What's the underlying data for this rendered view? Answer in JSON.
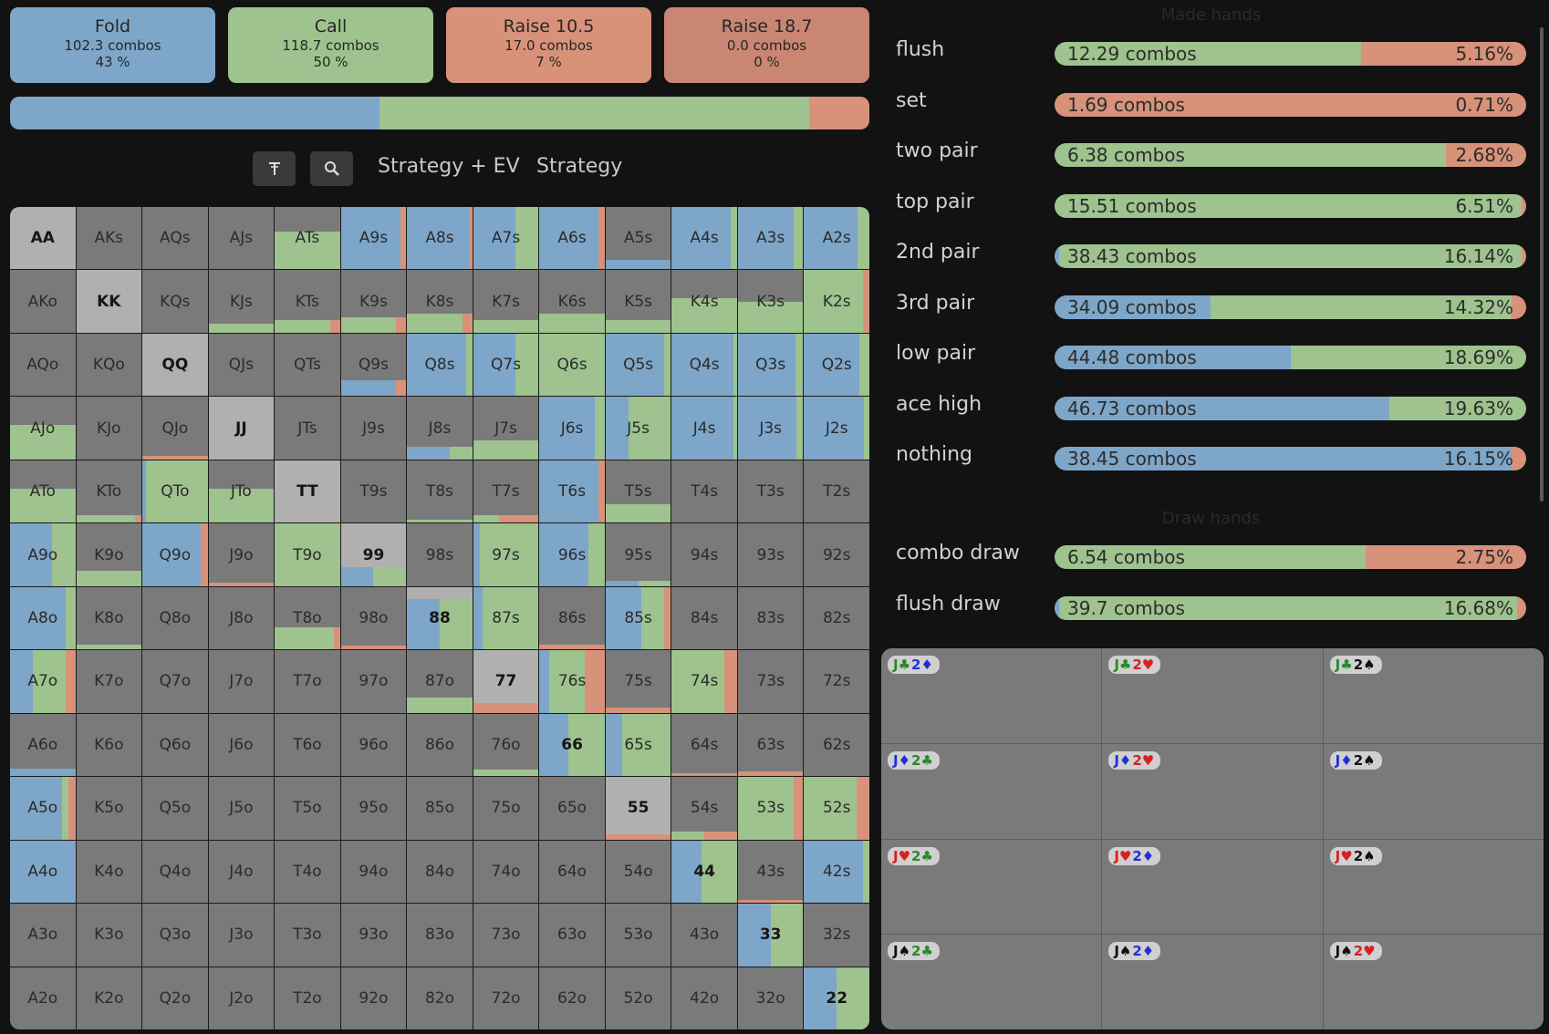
{
  "actions": [
    {
      "title": "Fold",
      "combos": "102.3 combos",
      "pct": "43 %",
      "color": "#7ea6c8"
    },
    {
      "title": "Call",
      "combos": "118.7 combos",
      "pct": "50 %",
      "color": "#9ec38e"
    },
    {
      "title": "Raise 10.5",
      "combos": "17.0 combos",
      "pct": "7 %",
      "color": "#d8927a"
    },
    {
      "title": "Raise 18.7",
      "combos": "0.0 combos",
      "pct": "0 %",
      "color": "#c98672"
    }
  ],
  "strategy_bar": [
    {
      "action": "Fold",
      "fraction": 0.43,
      "color": "#7ea6c8"
    },
    {
      "action": "Call",
      "fraction": 0.5,
      "color": "#9ec38e"
    },
    {
      "action": "Raise 10.5",
      "fraction": 0.07,
      "color": "#d8927a"
    }
  ],
  "toolbar": {
    "filter_icon": "filter-icon",
    "zoom_icon": "magnifier-icon",
    "tab_strategy_ev": "Strategy + EV",
    "tab_strategy": "Strategy"
  },
  "colors": {
    "fold": "#7ea6c8",
    "call": "#9ec38e",
    "raise": "#d8927a",
    "cell": "#7a7a7a",
    "pair": "#b0b0b0"
  },
  "grid": [
    [
      "AA",
      "AKs",
      "AQs",
      "AJs",
      "ATs",
      "A9s",
      "A8s",
      "A7s",
      "A6s",
      "A5s",
      "A4s",
      "A3s",
      "A2s"
    ],
    [
      "AKo",
      "KK",
      "KQs",
      "KJs",
      "KTs",
      "K9s",
      "K8s",
      "K7s",
      "K6s",
      "K5s",
      "K4s",
      "K3s",
      "K2s"
    ],
    [
      "AQo",
      "KQo",
      "QQ",
      "QJs",
      "QTs",
      "Q9s",
      "Q8s",
      "Q7s",
      "Q6s",
      "Q5s",
      "Q4s",
      "Q3s",
      "Q2s"
    ],
    [
      "AJo",
      "KJo",
      "QJo",
      "JJ",
      "JTs",
      "J9s",
      "J8s",
      "J7s",
      "J6s",
      "J5s",
      "J4s",
      "J3s",
      "J2s"
    ],
    [
      "ATo",
      "KTo",
      "QTo",
      "JTo",
      "TT",
      "T9s",
      "T8s",
      "T7s",
      "T6s",
      "T5s",
      "T4s",
      "T3s",
      "T2s"
    ],
    [
      "A9o",
      "K9o",
      "Q9o",
      "J9o",
      "T9o",
      "99",
      "98s",
      "97s",
      "96s",
      "95s",
      "94s",
      "93s",
      "92s"
    ],
    [
      "A8o",
      "K8o",
      "Q8o",
      "J8o",
      "T8o",
      "98o",
      "88",
      "87s",
      "86s",
      "85s",
      "84s",
      "83s",
      "82s"
    ],
    [
      "A7o",
      "K7o",
      "Q7o",
      "J7o",
      "T7o",
      "97o",
      "87o",
      "77",
      "76s",
      "75s",
      "74s",
      "73s",
      "72s"
    ],
    [
      "A6o",
      "K6o",
      "Q6o",
      "J6o",
      "T6o",
      "96o",
      "86o",
      "76o",
      "66",
      "65s",
      "64s",
      "63s",
      "62s"
    ],
    [
      "A5o",
      "K5o",
      "Q5o",
      "J5o",
      "T5o",
      "95o",
      "85o",
      "75o",
      "65o",
      "55",
      "54s",
      "53s",
      "52s"
    ],
    [
      "A4o",
      "K4o",
      "Q4o",
      "J4o",
      "T4o",
      "94o",
      "84o",
      "74o",
      "64o",
      "54o",
      "44",
      "43s",
      "42s"
    ],
    [
      "A3o",
      "K3o",
      "Q3o",
      "J3o",
      "T3o",
      "93o",
      "83o",
      "73o",
      "63o",
      "53o",
      "43o",
      "33",
      "32s"
    ],
    [
      "A2o",
      "K2o",
      "Q2o",
      "J2o",
      "T2o",
      "92o",
      "82o",
      "72o",
      "62o",
      "52o",
      "42o",
      "32o",
      "22"
    ]
  ],
  "cell_strategy": {
    "ATs": {
      "weight": 0.6,
      "fold": 0,
      "call": 1,
      "raise": 0
    },
    "A9s": {
      "weight": 1,
      "fold": 0.92,
      "call": 0,
      "raise": 0.08
    },
    "A8s": {
      "weight": 1,
      "fold": 0.95,
      "call": 0,
      "raise": 0.05
    },
    "A7s": {
      "weight": 1,
      "fold": 0.65,
      "call": 0.35,
      "raise": 0
    },
    "A6s": {
      "weight": 1,
      "fold": 0.9,
      "call": 0,
      "raise": 0.1
    },
    "A5s": {
      "weight": 0.15,
      "fold": 1,
      "call": 0,
      "raise": 0
    },
    "A4s": {
      "weight": 1,
      "fold": 0.9,
      "call": 0.1,
      "raise": 0
    },
    "A3s": {
      "weight": 1,
      "fold": 0.85,
      "call": 0.15,
      "raise": 0
    },
    "A2s": {
      "weight": 1,
      "fold": 0.82,
      "call": 0.18,
      "raise": 0
    },
    "KJs": {
      "weight": 0.15,
      "fold": 0,
      "call": 1,
      "raise": 0
    },
    "KTs": {
      "weight": 0.2,
      "fold": 0,
      "call": 0.85,
      "raise": 0.15
    },
    "K9s": {
      "weight": 0.25,
      "fold": 0,
      "call": 0.85,
      "raise": 0.15
    },
    "K8s": {
      "weight": 0.3,
      "fold": 0,
      "call": 0.85,
      "raise": 0.15
    },
    "K7s": {
      "weight": 0.2,
      "fold": 0,
      "call": 1,
      "raise": 0
    },
    "K6s": {
      "weight": 0.3,
      "fold": 0,
      "call": 1,
      "raise": 0
    },
    "K5s": {
      "weight": 0.2,
      "fold": 0,
      "call": 1,
      "raise": 0
    },
    "K4s": {
      "weight": 0.55,
      "fold": 0,
      "call": 1,
      "raise": 0
    },
    "K3s": {
      "weight": 0.5,
      "fold": 0,
      "call": 1,
      "raise": 0
    },
    "K2s": {
      "weight": 1,
      "fold": 0,
      "call": 0.9,
      "raise": 0.1
    },
    "Q9s": {
      "weight": 0.25,
      "fold": 0.85,
      "call": 0,
      "raise": 0.15
    },
    "Q8s": {
      "weight": 1,
      "fold": 0.9,
      "call": 0.1,
      "raise": 0
    },
    "Q7s": {
      "weight": 1,
      "fold": 0.65,
      "call": 0.35,
      "raise": 0
    },
    "Q6s": {
      "weight": 1,
      "fold": 0,
      "call": 1,
      "raise": 0
    },
    "Q5s": {
      "weight": 1,
      "fold": 0.9,
      "call": 0.1,
      "raise": 0
    },
    "Q4s": {
      "weight": 1,
      "fold": 0.95,
      "call": 0.05,
      "raise": 0
    },
    "Q3s": {
      "weight": 1,
      "fold": 0.88,
      "call": 0.12,
      "raise": 0
    },
    "Q2s": {
      "weight": 1,
      "fold": 0.85,
      "call": 0.15,
      "raise": 0
    },
    "AJo": {
      "weight": 0.55,
      "fold": 0,
      "call": 1,
      "raise": 0
    },
    "QJo": {
      "weight": 0.05,
      "fold": 0,
      "call": 0,
      "raise": 1
    },
    "J8s": {
      "weight": 0.2,
      "fold": 0.65,
      "call": 0.35,
      "raise": 0
    },
    "J7s": {
      "weight": 0.3,
      "fold": 0,
      "call": 1,
      "raise": 0
    },
    "J6s": {
      "weight": 1,
      "fold": 0.85,
      "call": 0.15,
      "raise": 0
    },
    "J5s": {
      "weight": 1,
      "fold": 0.35,
      "call": 0.65,
      "raise": 0
    },
    "J4s": {
      "weight": 1,
      "fold": 0.95,
      "call": 0.05,
      "raise": 0
    },
    "J3s": {
      "weight": 1,
      "fold": 0.9,
      "call": 0.1,
      "raise": 0
    },
    "J2s": {
      "weight": 1,
      "fold": 0.92,
      "call": 0.08,
      "raise": 0
    },
    "ATo": {
      "weight": 0.55,
      "fold": 0,
      "call": 1,
      "raise": 0
    },
    "KTo": {
      "weight": 0.12,
      "fold": 0,
      "call": 0.9,
      "raise": 0.1
    },
    "QTo": {
      "weight": 1,
      "fold": 0.05,
      "call": 0.95,
      "raise": 0
    },
    "JTo": {
      "weight": 0.55,
      "fold": 0,
      "call": 1,
      "raise": 0
    },
    "T8s": {
      "weight": 0.05,
      "fold": 0,
      "call": 1,
      "raise": 0
    },
    "T7s": {
      "weight": 0.12,
      "fold": 0,
      "call": 0.4,
      "raise": 0.6
    },
    "T6s": {
      "weight": 1,
      "fold": 0.9,
      "call": 0,
      "raise": 0.1
    },
    "T5s": {
      "weight": 0.3,
      "fold": 0,
      "call": 1,
      "raise": 0
    },
    "A9o": {
      "weight": 1,
      "fold": 0.65,
      "call": 0.35,
      "raise": 0
    },
    "K9o": {
      "weight": 0.25,
      "fold": 0,
      "call": 1,
      "raise": 0
    },
    "Q9o": {
      "weight": 1,
      "fold": 0.9,
      "call": 0,
      "raise": 0.1
    },
    "J9o": {
      "weight": 0.05,
      "fold": 0,
      "call": 0,
      "raise": 1
    },
    "T9o": {
      "weight": 1,
      "fold": 0,
      "call": 1,
      "raise": 0
    },
    "99": {
      "weight": 0.3,
      "fold": 0.5,
      "call": 0.5,
      "raise": 0
    },
    "97s": {
      "weight": 1,
      "fold": 0.1,
      "call": 0.9,
      "raise": 0
    },
    "96s": {
      "weight": 1,
      "fold": 0.75,
      "call": 0.25,
      "raise": 0
    },
    "95s": {
      "weight": 0.08,
      "fold": 0.5,
      "call": 0.5,
      "raise": 0
    },
    "A8o": {
      "weight": 1,
      "fold": 0.85,
      "call": 0.15,
      "raise": 0
    },
    "K8o": {
      "weight": 0.08,
      "fold": 0,
      "call": 1,
      "raise": 0
    },
    "T8o": {
      "weight": 0.35,
      "fold": 0,
      "call": 0.9,
      "raise": 0.1
    },
    "98o": {
      "weight": 0.06,
      "fold": 0,
      "call": 0,
      "raise": 1
    },
    "88": {
      "weight": 0.8,
      "fold": 0.5,
      "call": 0.5,
      "raise": 0
    },
    "87s": {
      "weight": 1,
      "fold": 0.15,
      "call": 0.85,
      "raise": 0
    },
    "86s": {
      "weight": 0.08,
      "fold": 0,
      "call": 0,
      "raise": 1
    },
    "85s": {
      "weight": 1,
      "fold": 0.55,
      "call": 0.35,
      "raise": 0.1
    },
    "A7o": {
      "weight": 1,
      "fold": 0.35,
      "call": 0.5,
      "raise": 0.15
    },
    "87o": {
      "weight": 0.25,
      "fold": 0,
      "call": 1,
      "raise": 0
    },
    "77": {
      "weight": 0.15,
      "fold": 0,
      "call": 0,
      "raise": 1
    },
    "76s": {
      "weight": 1,
      "fold": 0.15,
      "call": 0.55,
      "raise": 0.3
    },
    "75s": {
      "weight": 0.08,
      "fold": 0,
      "call": 0,
      "raise": 1
    },
    "74s": {
      "weight": 1,
      "fold": 0,
      "call": 0.8,
      "raise": 0.2
    },
    "A6o": {
      "weight": 0.12,
      "fold": 1,
      "call": 0,
      "raise": 0
    },
    "76o": {
      "weight": 0.1,
      "fold": 0,
      "call": 1,
      "raise": 0
    },
    "66": {
      "weight": 1,
      "fold": 0.45,
      "call": 0.55,
      "raise": 0
    },
    "65s": {
      "weight": 1,
      "fold": 0.25,
      "call": 0.75,
      "raise": 0
    },
    "64s": {
      "weight": 0.05,
      "fold": 0,
      "call": 0,
      "raise": 1
    },
    "63s": {
      "weight": 0.08,
      "fold": 0,
      "call": 0,
      "raise": 1
    },
    "A5o": {
      "weight": 1,
      "fold": 0.8,
      "call": 0.1,
      "raise": 0.1
    },
    "55": {
      "weight": 0.08,
      "fold": 0,
      "call": 0,
      "raise": 1
    },
    "54s": {
      "weight": 0.12,
      "fold": 0,
      "call": 0.5,
      "raise": 0.5
    },
    "53s": {
      "weight": 1,
      "fold": 0,
      "call": 0.85,
      "raise": 0.15
    },
    "52s": {
      "weight": 1,
      "fold": 0,
      "call": 0.8,
      "raise": 0.2
    },
    "A4o": {
      "weight": 1,
      "fold": 1,
      "call": 0,
      "raise": 0
    },
    "44": {
      "weight": 1,
      "fold": 0.45,
      "call": 0.55,
      "raise": 0
    },
    "43s": {
      "weight": 0.05,
      "fold": 0,
      "call": 0,
      "raise": 1
    },
    "42s": {
      "weight": 1,
      "fold": 0.9,
      "call": 0.1,
      "raise": 0
    },
    "33": {
      "weight": 1,
      "fold": 0.5,
      "call": 0.5,
      "raise": 0
    },
    "22": {
      "weight": 1,
      "fold": 0.5,
      "call": 0.5,
      "raise": 0
    }
  },
  "hand_classes": {
    "title": "Made hands",
    "rows": [
      {
        "name": "flush",
        "combos": "12.29 combos",
        "pct": "5.16%",
        "fold": 0,
        "call": 0.65,
        "raise": 0.35
      },
      {
        "name": "set",
        "combos": "1.69 combos",
        "pct": "0.71%",
        "fold": 0,
        "call": 0,
        "raise": 1
      },
      {
        "name": "two pair",
        "combos": "6.38 combos",
        "pct": "2.68%",
        "fold": 0,
        "call": 0.83,
        "raise": 0.17
      },
      {
        "name": "top pair",
        "combos": "15.51 combos",
        "pct": "6.51%",
        "fold": 0,
        "call": 0.99,
        "raise": 0.01
      },
      {
        "name": "2nd pair",
        "combos": "38.43 combos",
        "pct": "16.14%",
        "fold": 0.01,
        "call": 0.98,
        "raise": 0.01
      },
      {
        "name": "3rd pair",
        "combos": "34.09 combos",
        "pct": "14.32%",
        "fold": 0.33,
        "call": 0.64,
        "raise": 0.03
      },
      {
        "name": "low pair",
        "combos": "44.48 combos",
        "pct": "18.69%",
        "fold": 0.5,
        "call": 0.5,
        "raise": 0
      },
      {
        "name": "ace high",
        "combos": "46.73 combos",
        "pct": "19.63%",
        "fold": 0.71,
        "call": 0.29,
        "raise": 0
      },
      {
        "name": "nothing",
        "combos": "38.45 combos",
        "pct": "16.15%",
        "fold": 0.97,
        "call": 0,
        "raise": 0.03
      }
    ],
    "draws_title": "Draw hands",
    "draws": [
      {
        "name": "combo draw",
        "combos": "6.54 combos",
        "pct": "2.75%",
        "fold": 0,
        "call": 0.66,
        "raise": 0.34
      },
      {
        "name": "flush draw",
        "combos": "39.7 combos",
        "pct": "16.68%",
        "fold": 0.01,
        "call": 0.97,
        "raise": 0.02
      }
    ]
  },
  "combos": [
    {
      "r1": "J",
      "s1": "♣",
      "c1": "#2b8a2b",
      "r2": "2",
      "s2": "♦",
      "c2": "#2030d8"
    },
    {
      "r1": "J",
      "s1": "♣",
      "c1": "#2b8a2b",
      "r2": "2",
      "s2": "♥",
      "c2": "#d82020"
    },
    {
      "r1": "J",
      "s1": "♣",
      "c1": "#2b8a2b",
      "r2": "2",
      "s2": "♠",
      "c2": "#111111"
    },
    {
      "r1": "J",
      "s1": "♦",
      "c1": "#2030d8",
      "r2": "2",
      "s2": "♣",
      "c2": "#2b8a2b"
    },
    {
      "r1": "J",
      "s1": "♦",
      "c1": "#2030d8",
      "r2": "2",
      "s2": "♥",
      "c2": "#d82020"
    },
    {
      "r1": "J",
      "s1": "♦",
      "c1": "#2030d8",
      "r2": "2",
      "s2": "♠",
      "c2": "#111111"
    },
    {
      "r1": "J",
      "s1": "♥",
      "c1": "#d82020",
      "r2": "2",
      "s2": "♣",
      "c2": "#2b8a2b"
    },
    {
      "r1": "J",
      "s1": "♥",
      "c1": "#d82020",
      "r2": "2",
      "s2": "♦",
      "c2": "#2030d8"
    },
    {
      "r1": "J",
      "s1": "♥",
      "c1": "#d82020",
      "r2": "2",
      "s2": "♠",
      "c2": "#111111"
    },
    {
      "r1": "J",
      "s1": "♠",
      "c1": "#111111",
      "r2": "2",
      "s2": "♣",
      "c2": "#2b8a2b"
    },
    {
      "r1": "J",
      "s1": "♠",
      "c1": "#111111",
      "r2": "2",
      "s2": "♦",
      "c2": "#2030d8"
    },
    {
      "r1": "J",
      "s1": "♠",
      "c1": "#111111",
      "r2": "2",
      "s2": "♥",
      "c2": "#d82020"
    }
  ]
}
